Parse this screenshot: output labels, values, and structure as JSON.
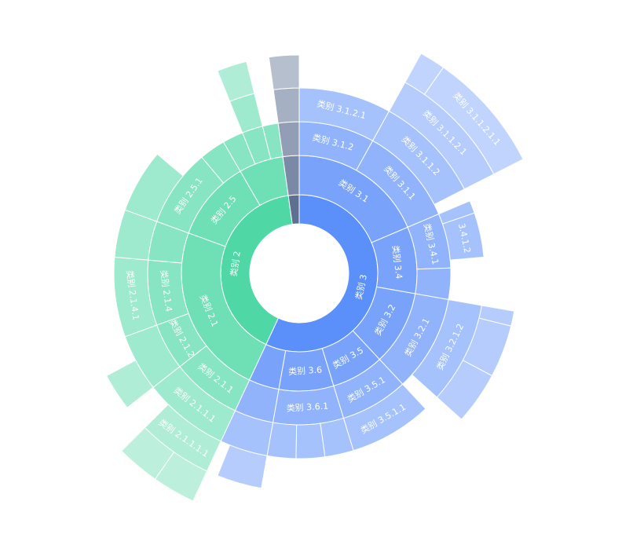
{
  "chart_data": {
    "type": "sunburst",
    "data": [
      {
        "name": "类别 3",
        "value": 205,
        "color": "#5b8ff9",
        "children": [
          {
            "name": "类别 3.1",
            "value": 67,
            "children": [
              {
                "name": "类别 3.1.2",
                "value": 29,
                "children": [
                  {
                    "name": "类别 3.1.2.1",
                    "value": 29
                  }
                ]
              },
              {
                "name": "类别 3.1.1",
                "value": 38,
                "children": [
                  {
                    "name": "类别 3.1.1.2",
                    "value": 34,
                    "children": [
                      {
                        "name": "类别 3.1.1.2.1",
                        "value": 34,
                        "children": [
                          {
                            "name": null,
                            "value": 6
                          },
                          {
                            "name": "类别 3.1.1.2.1.1",
                            "value": 28
                          }
                        ]
                      }
                    ]
                  }
                ]
              }
            ]
          },
          {
            "name": "类别 3.4",
            "value": 33,
            "children": [
              {
                "name": "类别 3.4.1",
                "value": 21,
                "children": [
                  {
                    "name": null,
                    "value": 4
                  },
                  {
                    "name": "3.4.1.2",
                    "value": 14
                  }
                ]
              },
              {
                "name": null,
                "value": 12
              }
            ]
          },
          {
            "name": "类别 3.2",
            "value": 37,
            "children": [
              {
                "name": "类别 3.2.1",
                "value": 37,
                "children": [
                  {
                    "name": "类别 3.2.1.2",
                    "value": 32,
                    "children": [
                      {
                        "name": null,
                        "value": 4
                      },
                      {
                        "name": null,
                        "value": 14
                      },
                      {
                        "name": null,
                        "value": 14
                      }
                    ]
                  }
                ]
              }
            ]
          },
          {
            "name": "类别 3.5",
            "value": 26,
            "children": [
              {
                "name": "类别 3.5.1",
                "value": 26,
                "children": [
                  {
                    "name": "类别 3.5.1.1",
                    "value": 26
                  }
                ]
              }
            ]
          },
          {
            "name": "类别 3.6",
            "value": 27,
            "children": [
              {
                "name": "类别 3.6.1",
                "value": 27,
                "children": [
                  {
                    "name": null,
                    "value": 9
                  },
                  {
                    "name": null,
                    "value": 9
                  },
                  {
                    "name": null,
                    "value": 9
                  }
                ]
              }
            ]
          },
          {
            "name": null,
            "value": 15,
            "children": [
              {
                "name": null,
                "value": 15,
                "children": [
                  {
                    "name": null,
                    "value": 15,
                    "children": [
                      {
                        "name": null,
                        "value": 12
                      }
                    ]
                  }
                ]
              }
            ]
          }
        ]
      },
      {
        "name": "类别 2",
        "value": 147,
        "color": "#4fd8a6",
        "children": [
          {
            "name": "类别 2.1",
            "value": 85,
            "children": [
              {
                "name": "类别 2.1.1",
                "value": 27,
                "children": [
                  {
                    "name": "类别 2.1.1.1",
                    "value": 27,
                    "children": [
                      {
                        "name": "类别 2.1.1.1.1",
                        "value": 20,
                        "children": [
                          {
                            "name": null,
                            "value": 10
                          },
                          {
                            "name": null,
                            "value": 10
                          }
                        ]
                      }
                    ]
                  }
                ]
              },
              {
                "name": "类别 2.1.2",
                "value": 18,
                "children": [
                  {
                    "name": null,
                    "value": 18,
                    "children": [
                      {
                        "name": null,
                        "value": 10
                      }
                    ]
                  }
                ]
              },
              {
                "name": "类别 2.1.4",
                "value": 25,
                "children": [
                  {
                    "name": "类别 2.1.4.1",
                    "value": 25
                  }
                ]
              },
              {
                "name": null,
                "value": 15,
                "children": [
                  {
                    "name": null,
                    "value": 15
                  }
                ]
              }
            ]
          },
          {
            "name": "类别 2.5",
            "value": 40,
            "children": [
              {
                "name": "类别 2.5.1",
                "value": 30,
                "children": [
                  {
                    "name": null,
                    "value": 20
                  }
                ]
              },
              {
                "name": null,
                "value": 10
              }
            ]
          },
          {
            "name": null,
            "value": 22,
            "children": [
              {
                "name": null,
                "value": 8
              },
              {
                "name": null,
                "value": 8,
                "children": [
                  {
                    "name": null,
                    "value": 8,
                    "children": [
                      {
                        "name": null,
                        "value": 8
                      }
                    ]
                  }
                ]
              },
              {
                "name": null,
                "value": 6
              }
            ]
          }
        ]
      },
      {
        "name": null,
        "value": 8,
        "color": "#5d7092",
        "children": [
          {
            "name": null,
            "value": 8,
            "children": [
              {
                "name": null,
                "value": 8,
                "children": [
                  {
                    "name": null,
                    "value": 8,
                    "children": [
                      {
                        "name": null,
                        "value": 8
                      }
                    ]
                  }
                ]
              }
            ]
          }
        ]
      }
    ]
  }
}
